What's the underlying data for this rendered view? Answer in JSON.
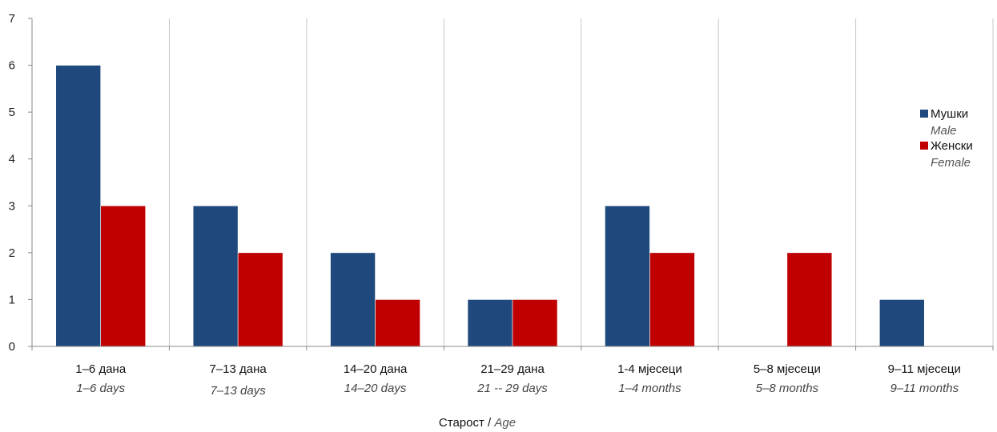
{
  "chart_data": {
    "type": "bar",
    "categories": [
      "1–6 дана",
      "7–13 дана",
      "14–20 дана",
      "21–29 дана",
      "1-4 мјесеци",
      "5–8 мјесеци",
      "9–11 мјесеци"
    ],
    "categories_en": [
      "1–6 days",
      "7–13 days",
      "14–20 days",
      "21 -- 29 days",
      "1–4  months",
      "5–8 months",
      "9–11 months"
    ],
    "series": [
      {
        "name": "Мушки",
        "name_en": "Male",
        "color": "#1f497d",
        "values": [
          6,
          3,
          2,
          1,
          3,
          0,
          1
        ]
      },
      {
        "name": "Женски",
        "name_en": "Female",
        "color": "#c00000",
        "values": [
          3,
          2,
          1,
          1,
          2,
          2,
          0
        ]
      }
    ],
    "xlabel": "Старост",
    "xlabel_en": "Age",
    "xlabel_separator": " / ",
    "ylabel": "",
    "ylim": [
      0,
      7
    ],
    "yticks": [
      "0",
      "1",
      "2",
      "3",
      "4",
      "5",
      "6",
      "7"
    ],
    "grid": "vertical",
    "legend_position": "right"
  }
}
